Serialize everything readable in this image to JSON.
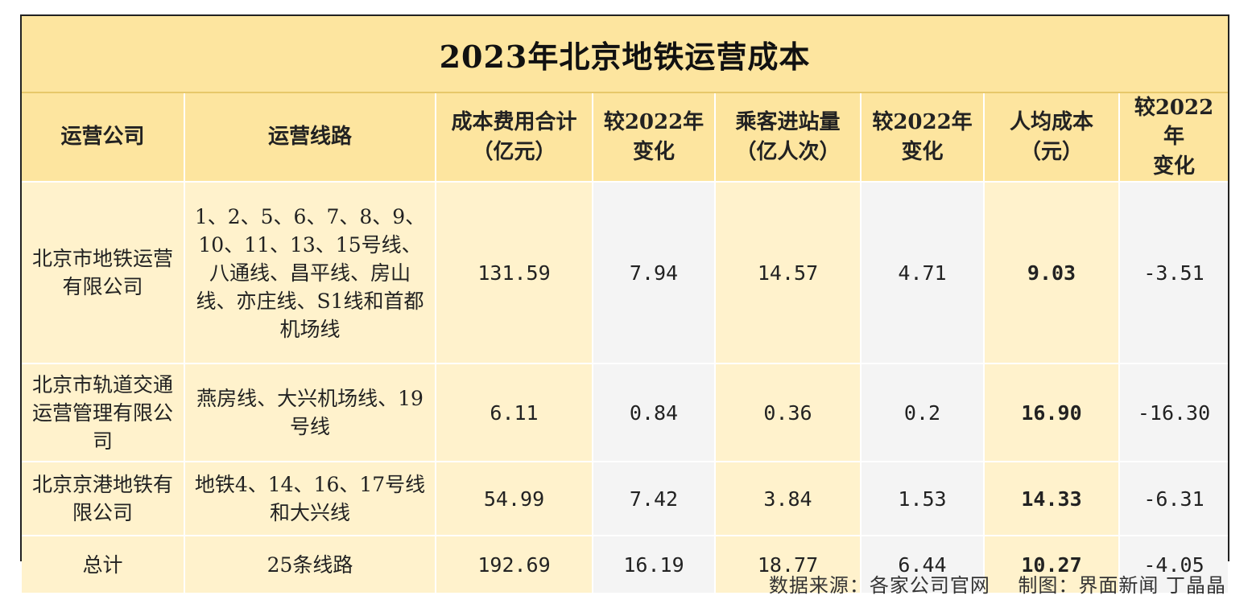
{
  "title": "2023年北京地铁运营成本",
  "headers": {
    "company": "运营公司",
    "lines": "运营线路",
    "cost_line1": "成本费用合计",
    "cost_line2": "（亿元）",
    "cost_change_line1": "较2022年",
    "cost_change_line2": "变化",
    "passengers_line1": "乘客进站量",
    "passengers_line2": "（亿人次）",
    "passengers_change_line1": "较2022年",
    "passengers_change_line2": "变化",
    "per_capita_line1": "人均成本",
    "per_capita_line2": "（元）",
    "per_capita_change_line1": "较2022年",
    "per_capita_change_line2": "变化"
  },
  "rows": [
    {
      "company": "北京市地铁运营有限公司",
      "lines": "1、2、5、6、7、8、9、10、11、13、15号线、八通线、昌平线、房山线、亦庄线、S1线和首都机场线",
      "cost": "131.59",
      "cost_change": "7.94",
      "passengers": "14.57",
      "passengers_change": "4.71",
      "per_capita": "9.03",
      "per_capita_change": "-3.51"
    },
    {
      "company": "北京市轨道交通运营管理有限公司",
      "lines": "燕房线、大兴机场线、19号线",
      "cost": "6.11",
      "cost_change": "0.84",
      "passengers": "0.36",
      "passengers_change": "0.2",
      "per_capita": "16.90",
      "per_capita_change": "-16.30"
    },
    {
      "company": "北京京港地铁有限公司",
      "lines": "地铁4、14、16、17号线和大兴线",
      "cost": "54.99",
      "cost_change": "7.42",
      "passengers": "3.84",
      "passengers_change": "1.53",
      "per_capita": "14.33",
      "per_capita_change": "-6.31"
    },
    {
      "company": "总计",
      "lines": "25条线路",
      "cost": "192.69",
      "cost_change": "16.19",
      "passengers": "18.77",
      "passengers_change": "6.44",
      "per_capita": "10.27",
      "per_capita_change": "-4.05"
    }
  ],
  "footer": {
    "source": "数据来源：各家公司官网",
    "credit": "制图：界面新闻 丁晶晶"
  },
  "colors": {
    "header_yellow": "#fde59f",
    "cream": "#fff2cc",
    "grey": "#f4f4f4"
  }
}
